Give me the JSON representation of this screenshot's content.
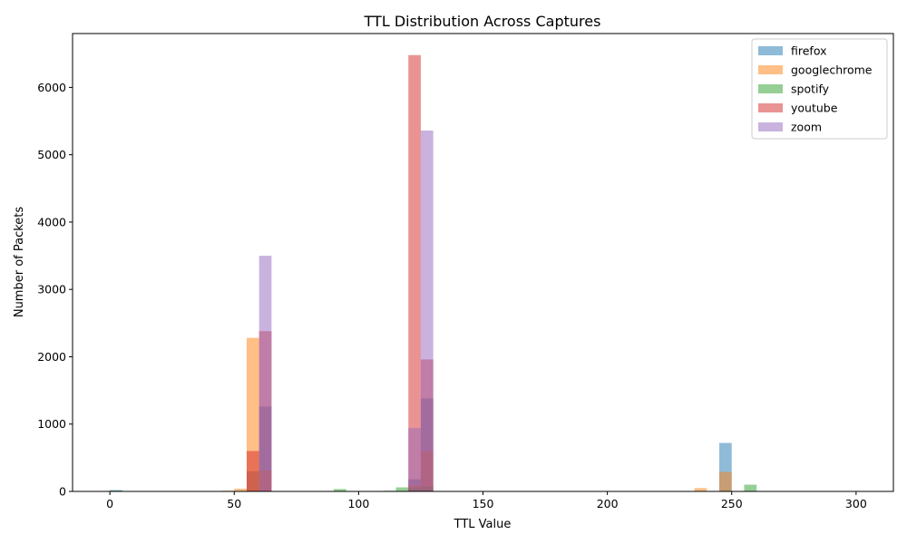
{
  "chart_data": {
    "type": "bar",
    "subtype": "overlapping histogram",
    "title": "TTL Distribution Across Captures",
    "xlabel": "TTL Value",
    "ylabel": "Number of Packets",
    "xlim": [
      -15,
      315
    ],
    "ylim": [
      0,
      6800
    ],
    "x_ticks": [
      0,
      50,
      100,
      150,
      200,
      250,
      300
    ],
    "y_ticks": [
      0,
      1000,
      2000,
      3000,
      4000,
      5000,
      6000
    ],
    "bin_width": 5,
    "bar_opacity": 0.5,
    "grid": false,
    "legend_position": "top-right",
    "series": [
      {
        "name": "firefox",
        "color": "#1f77b4",
        "bins": [
          [
            0,
            20
          ],
          [
            55,
            300
          ],
          [
            60,
            1260
          ],
          [
            120,
            180
          ],
          [
            125,
            1380
          ],
          [
            245,
            720
          ]
        ]
      },
      {
        "name": "googlechrome",
        "color": "#ff7f0e",
        "bins": [
          [
            40,
            5
          ],
          [
            45,
            10
          ],
          [
            50,
            40
          ],
          [
            55,
            2280
          ],
          [
            60,
            310
          ],
          [
            120,
            90
          ],
          [
            125,
            600
          ],
          [
            235,
            50
          ],
          [
            245,
            290
          ]
        ]
      },
      {
        "name": "spotify",
        "color": "#2ca02c",
        "bins": [
          [
            0,
            10
          ],
          [
            90,
            35
          ],
          [
            110,
            10
          ],
          [
            115,
            60
          ],
          [
            120,
            60
          ],
          [
            125,
            70
          ],
          [
            255,
            100
          ]
        ]
      },
      {
        "name": "youtube",
        "color": "#d62728",
        "bins": [
          [
            55,
            600
          ],
          [
            60,
            2380
          ],
          [
            120,
            6480
          ],
          [
            125,
            1960
          ]
        ]
      },
      {
        "name": "zoom",
        "color": "#9467bd",
        "bins": [
          [
            60,
            3500
          ],
          [
            120,
            940
          ],
          [
            125,
            5360
          ]
        ]
      }
    ]
  }
}
